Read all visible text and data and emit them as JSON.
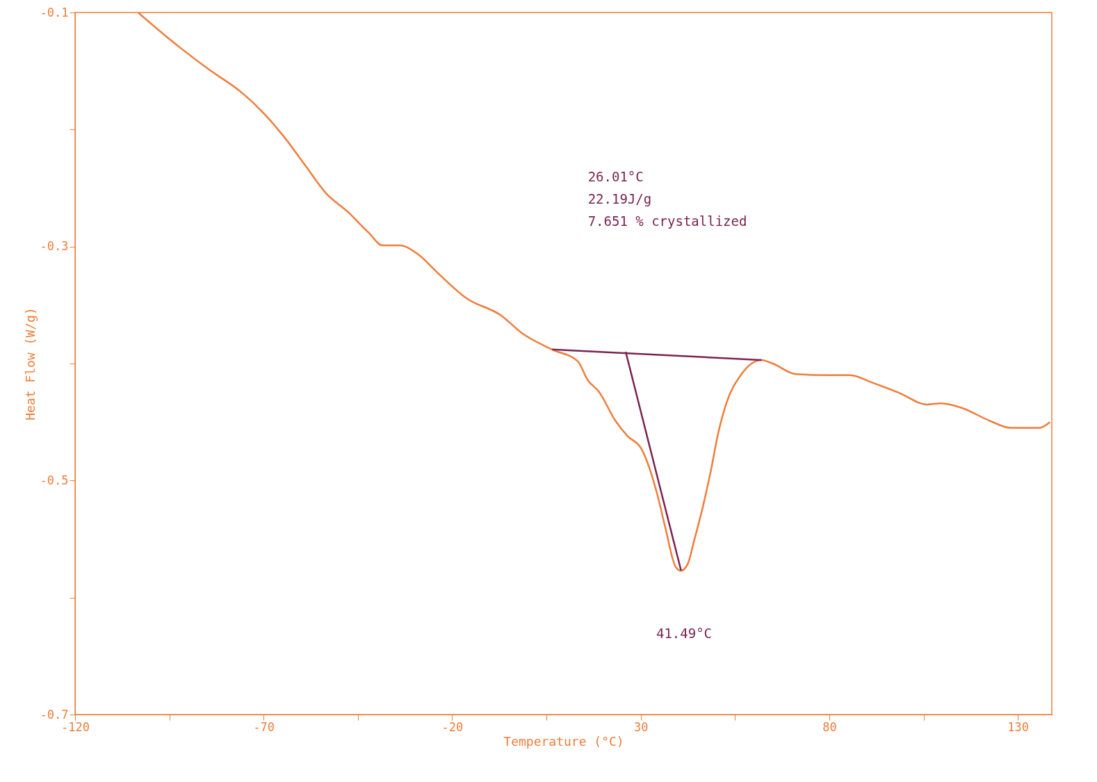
{
  "chart_data": {
    "type": "line",
    "xlabel": "Temperature (°C)",
    "ylabel": "Heat Flow (W/g)",
    "xlim": [
      -120,
      139
    ],
    "ylim": [
      -0.7,
      -0.1
    ],
    "xticks": [
      -120,
      {
        "value": -95,
        "label": null
      },
      -70,
      {
        "value": -45,
        "label": null
      },
      -20,
      {
        "value": 5,
        "label": null
      },
      30,
      {
        "value": 55,
        "label": null
      },
      80,
      {
        "value": 105,
        "label": null
      },
      130
    ],
    "yticks": [
      -0.7,
      {
        "value": -0.6,
        "label": null
      },
      -0.5,
      {
        "value": -0.4,
        "label": null
      },
      -0.3,
      {
        "value": -0.2,
        "label": null
      },
      -0.1
    ],
    "grid": false,
    "series": [
      {
        "color": "#ee7d3a",
        "x": [
          -103.3,
          -94.1,
          -84.8,
          -75.6,
          -70,
          -64.4,
          -58.9,
          -53.3,
          -47.8,
          -42.2,
          -38.5,
          -33.9,
          -29.3,
          -23.7,
          -16.3,
          -7,
          -1.5,
          6.5,
          13.3,
          15.9,
          18.9,
          23.3,
          26.5,
          30.2,
          34.4,
          36.5,
          39.3,
          40.7,
          42.5,
          44.1,
          46.5,
          48.5,
          50.5,
          52.8,
          56.5,
          62,
          65,
          71.1,
          80.4,
          85.6,
          91.1,
          98.5,
          105.9,
          109.6,
          115.2,
          122.6,
          128.1,
          135.6,
          138.5
        ],
        "values": [
          -0.1,
          -0.125,
          -0.148,
          -0.169,
          -0.186,
          -0.207,
          -0.231,
          -0.255,
          -0.27,
          -0.288,
          -0.299,
          -0.299,
          -0.306,
          -0.323,
          -0.344,
          -0.359,
          -0.374,
          -0.388,
          -0.398,
          -0.414,
          -0.424,
          -0.449,
          -0.462,
          -0.473,
          -0.512,
          -0.54,
          -0.574,
          -0.577,
          -0.571,
          -0.552,
          -0.522,
          -0.493,
          -0.46,
          -0.433,
          -0.41,
          -0.397,
          -0.4,
          -0.409,
          -0.41,
          -0.41,
          -0.416,
          -0.425,
          -0.435,
          -0.434,
          -0.438,
          -0.449,
          -0.455,
          -0.455,
          -0.45
        ]
      },
      {
        "type": "line",
        "color": "#7a2350",
        "x": [
          6.5,
          62
        ],
        "values": [
          -0.388,
          -0.397
        ]
      },
      {
        "type": "line",
        "color": "#7a2350",
        "x": [
          26.01,
          40.7
        ],
        "values": [
          -0.39,
          -0.577
        ]
      }
    ],
    "annotations": [
      "26.01°C",
      "22.19J/g",
      "7.651 % crystallized",
      "41.49°C"
    ]
  }
}
